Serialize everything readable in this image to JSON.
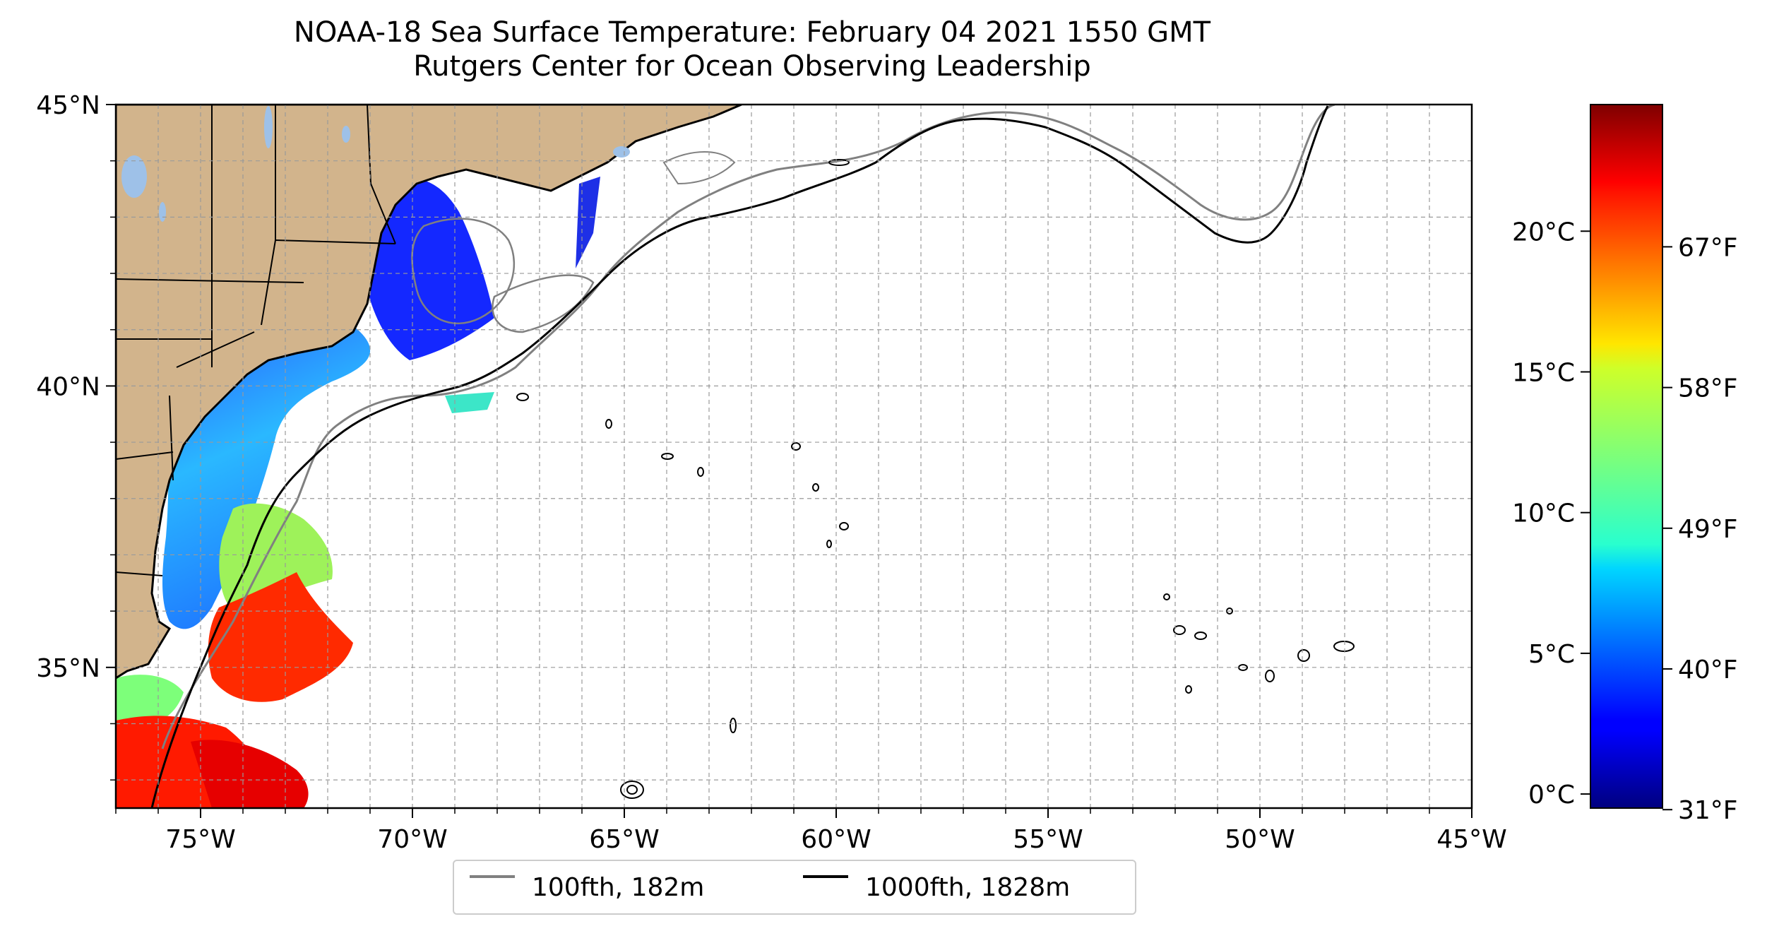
{
  "title": {
    "line1": "NOAA-18 Sea Surface Temperature: February 04 2021 1550 GMT",
    "line2": "Rutgers Center for Ocean Observing Leadership"
  },
  "map": {
    "lon_range": [
      -77,
      -45
    ],
    "lat_range": [
      32.5,
      45
    ],
    "lon_ticks": [
      {
        "value": -75,
        "label": "75°W"
      },
      {
        "value": -70,
        "label": "70°W"
      },
      {
        "value": -65,
        "label": "65°W"
      },
      {
        "value": -60,
        "label": "60°W"
      },
      {
        "value": -55,
        "label": "55°W"
      },
      {
        "value": -50,
        "label": "50°W"
      },
      {
        "value": -45,
        "label": "45°W"
      }
    ],
    "lat_ticks": [
      {
        "value": 35,
        "label": "35°N"
      },
      {
        "value": 40,
        "label": "40°N"
      },
      {
        "value": 45,
        "label": "45°N"
      }
    ],
    "gridlines": "dashed",
    "land_color": "#d2b48c",
    "lake_color": "#9ec1e8"
  },
  "colorbar": {
    "colormap": "jet",
    "celsius_ticks": [
      {
        "value": 0,
        "label": "0°C"
      },
      {
        "value": 5,
        "label": "5°C"
      },
      {
        "value": 10,
        "label": "10°C"
      },
      {
        "value": 15,
        "label": "15°C"
      },
      {
        "value": 20,
        "label": "20°C"
      }
    ],
    "fahrenheit_ticks": [
      {
        "value": 31,
        "label": "31°F"
      },
      {
        "value": 40,
        "label": "40°F"
      },
      {
        "value": 49,
        "label": "49°F"
      },
      {
        "value": 58,
        "label": "58°F"
      },
      {
        "value": 67,
        "label": "67°F"
      }
    ],
    "range_celsius": [
      -0.5,
      24.5
    ]
  },
  "legend": {
    "items": [
      {
        "label": "100fth, 182m",
        "color": "#808080"
      },
      {
        "label": "1000fth, 1828m",
        "color": "#000000"
      }
    ]
  }
}
